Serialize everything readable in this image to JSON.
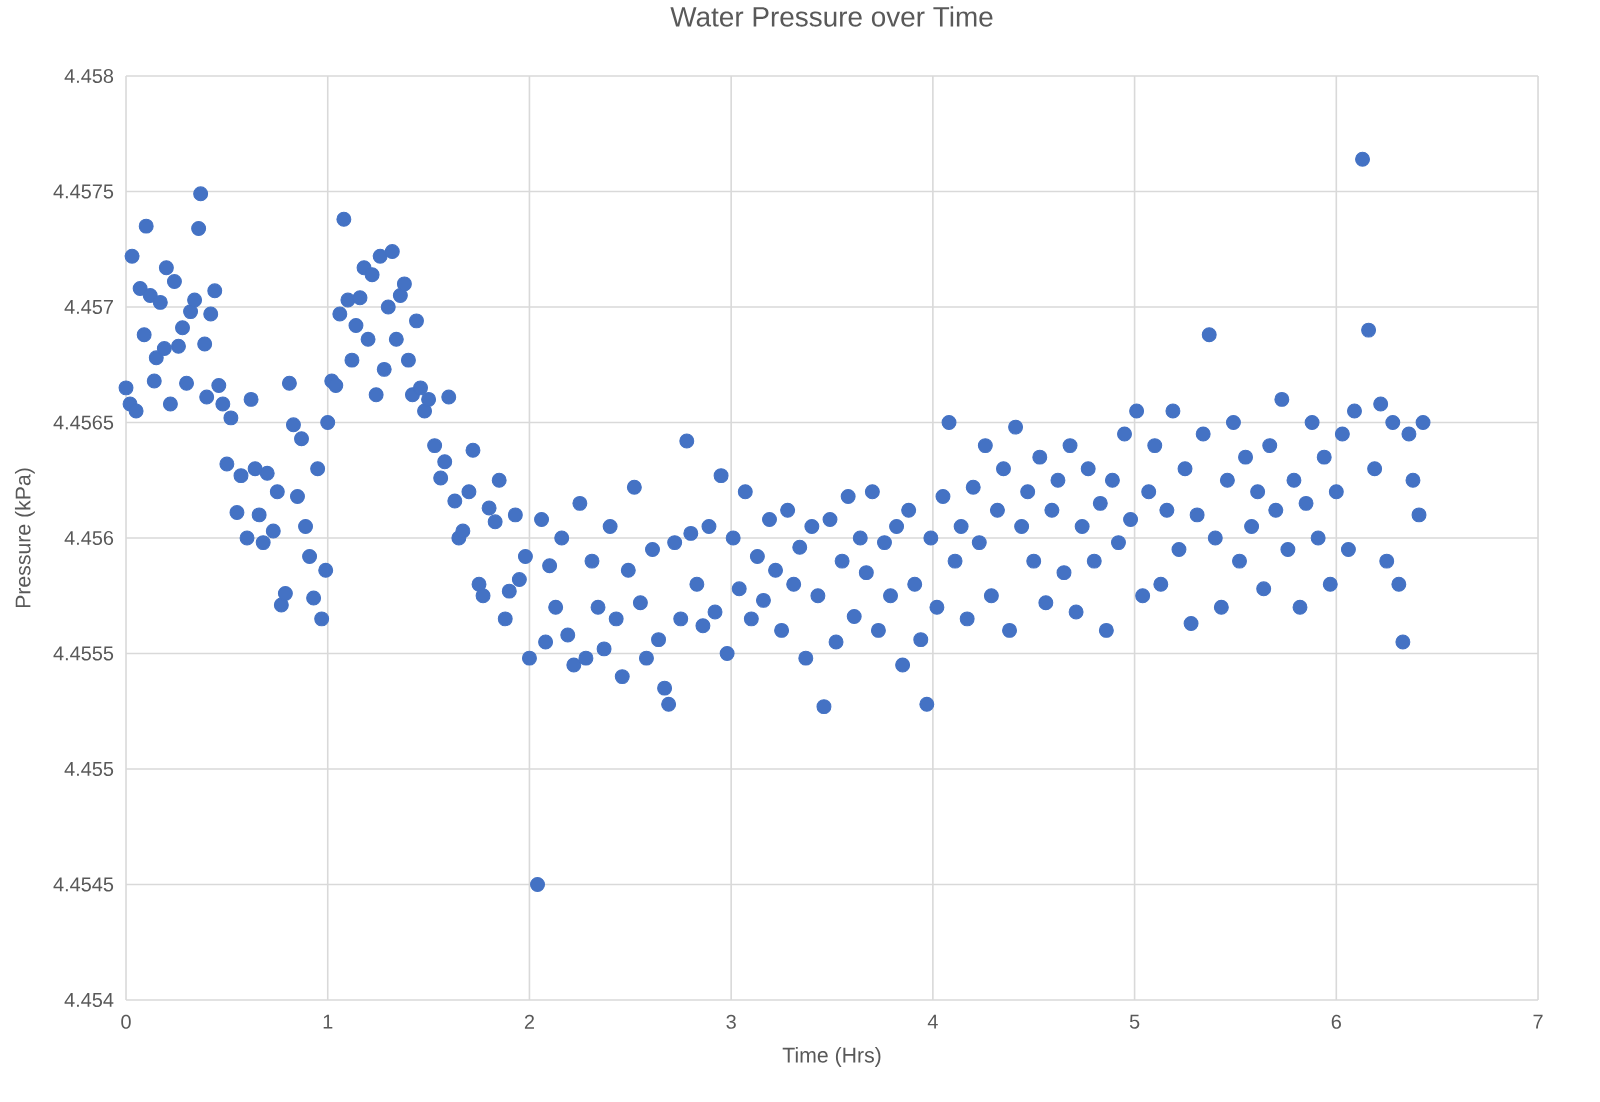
{
  "chart_data": {
    "type": "scatter",
    "title": "Water Pressure over Time",
    "xlabel": "Time (Hrs)",
    "ylabel": "Pressure (kPa)",
    "color": "#4472c4",
    "marker": "circle",
    "grid": true,
    "xlim": [
      0,
      7
    ],
    "xticks": [
      0,
      1,
      2,
      3,
      4,
      5,
      6,
      7
    ],
    "ylim": [
      4.454,
      4.458
    ],
    "yticks": [
      4.454,
      4.4545,
      4.455,
      4.4555,
      4.456,
      4.4565,
      4.457,
      4.4575,
      4.458
    ],
    "x": [
      0.0,
      0.02,
      0.03,
      0.05,
      0.07,
      0.09,
      0.1,
      0.12,
      0.14,
      0.15,
      0.17,
      0.19,
      0.2,
      0.22,
      0.24,
      0.26,
      0.28,
      0.3,
      0.32,
      0.34,
      0.36,
      0.37,
      0.39,
      0.4,
      0.42,
      0.44,
      0.46,
      0.48,
      0.5,
      0.52,
      0.55,
      0.57,
      0.6,
      0.62,
      0.64,
      0.66,
      0.68,
      0.7,
      0.73,
      0.75,
      0.77,
      0.79,
      0.81,
      0.83,
      0.85,
      0.87,
      0.89,
      0.91,
      0.93,
      0.95,
      0.97,
      0.99,
      1.0,
      1.02,
      1.04,
      1.06,
      1.08,
      1.1,
      1.12,
      1.14,
      1.16,
      1.18,
      1.2,
      1.22,
      1.24,
      1.26,
      1.28,
      1.3,
      1.32,
      1.34,
      1.36,
      1.38,
      1.4,
      1.42,
      1.44,
      1.46,
      1.48,
      1.5,
      1.53,
      1.56,
      1.58,
      1.6,
      1.63,
      1.65,
      1.67,
      1.7,
      1.72,
      1.75,
      1.77,
      1.8,
      1.83,
      1.85,
      1.88,
      1.9,
      1.93,
      1.95,
      1.98,
      2.0,
      2.04,
      2.06,
      2.08,
      2.1,
      2.13,
      2.16,
      2.19,
      2.22,
      2.25,
      2.28,
      2.31,
      2.34,
      2.37,
      2.4,
      2.43,
      2.46,
      2.49,
      2.52,
      2.55,
      2.58,
      2.61,
      2.64,
      2.67,
      2.69,
      2.72,
      2.75,
      2.78,
      2.8,
      2.83,
      2.86,
      2.89,
      2.92,
      2.95,
      2.98,
      3.01,
      3.04,
      3.07,
      3.1,
      3.13,
      3.16,
      3.19,
      3.22,
      3.25,
      3.28,
      3.31,
      3.34,
      3.37,
      3.4,
      3.43,
      3.46,
      3.49,
      3.52,
      3.55,
      3.58,
      3.61,
      3.64,
      3.67,
      3.7,
      3.73,
      3.76,
      3.79,
      3.82,
      3.85,
      3.88,
      3.91,
      3.94,
      3.97,
      3.99,
      4.02,
      4.05,
      4.08,
      4.11,
      4.14,
      4.17,
      4.2,
      4.23,
      4.26,
      4.29,
      4.32,
      4.35,
      4.38,
      4.41,
      4.44,
      4.47,
      4.5,
      4.53,
      4.56,
      4.59,
      4.62,
      4.65,
      4.68,
      4.71,
      4.74,
      4.77,
      4.8,
      4.83,
      4.86,
      4.89,
      4.92,
      4.95,
      4.98,
      5.01,
      5.04,
      5.07,
      5.1,
      5.13,
      5.16,
      5.19,
      5.22,
      5.25,
      5.28,
      5.31,
      5.34,
      5.37,
      5.4,
      5.43,
      5.46,
      5.49,
      5.52,
      5.55,
      5.58,
      5.61,
      5.64,
      5.67,
      5.7,
      5.73,
      5.76,
      5.79,
      5.82,
      5.85,
      5.88,
      5.91,
      5.94,
      5.97,
      6.0,
      6.03,
      6.06,
      6.09,
      6.13,
      6.16,
      6.19,
      6.22,
      6.25,
      6.28,
      6.31,
      6.33,
      6.36,
      6.38,
      6.41,
      6.43
    ],
    "values": [
      4.45665,
      4.45658,
      4.45722,
      4.45655,
      4.45708,
      4.45688,
      4.45735,
      4.45705,
      4.45668,
      4.45678,
      4.45702,
      4.45682,
      4.45717,
      4.45658,
      4.45711,
      4.45683,
      4.45691,
      4.45667,
      4.45698,
      4.45703,
      4.45734,
      4.45749,
      4.45684,
      4.45661,
      4.45697,
      4.45707,
      4.45666,
      4.45658,
      4.45632,
      4.45652,
      4.45611,
      4.45627,
      4.456,
      4.4566,
      4.4563,
      4.4561,
      4.45598,
      4.45628,
      4.45603,
      4.4562,
      4.45571,
      4.45576,
      4.45667,
      4.45649,
      4.45618,
      4.45643,
      4.45605,
      4.45592,
      4.45574,
      4.4563,
      4.45565,
      4.45586,
      4.4565,
      4.45668,
      4.45666,
      4.45697,
      4.45738,
      4.45703,
      4.45677,
      4.45692,
      4.45704,
      4.45717,
      4.45686,
      4.45714,
      4.45662,
      4.45722,
      4.45673,
      4.457,
      4.45724,
      4.45686,
      4.45705,
      4.4571,
      4.45677,
      4.45662,
      4.45694,
      4.45665,
      4.45655,
      4.4566,
      4.4564,
      4.45626,
      4.45633,
      4.45661,
      4.45616,
      4.456,
      4.45603,
      4.4562,
      4.45638,
      4.4558,
      4.45575,
      4.45613,
      4.45607,
      4.45625,
      4.45565,
      4.45577,
      4.4561,
      4.45582,
      4.45592,
      4.45548,
      4.4545,
      4.45608,
      4.45555,
      4.45588,
      4.4557,
      4.456,
      4.45558,
      4.45545,
      4.45615,
      4.45548,
      4.4559,
      4.4557,
      4.45552,
      4.45605,
      4.45565,
      4.4554,
      4.45586,
      4.45622,
      4.45572,
      4.45548,
      4.45595,
      4.45556,
      4.45535,
      4.45528,
      4.45598,
      4.45565,
      4.45642,
      4.45602,
      4.4558,
      4.45562,
      4.45605,
      4.45568,
      4.45627,
      4.4555,
      4.456,
      4.45578,
      4.4562,
      4.45565,
      4.45592,
      4.45573,
      4.45608,
      4.45586,
      4.4556,
      4.45612,
      4.4558,
      4.45596,
      4.45548,
      4.45605,
      4.45575,
      4.45527,
      4.45608,
      4.45555,
      4.4559,
      4.45618,
      4.45566,
      4.456,
      4.45585,
      4.4562,
      4.4556,
      4.45598,
      4.45575,
      4.45605,
      4.45545,
      4.45612,
      4.4558,
      4.45556,
      4.45528,
      4.456,
      4.4557,
      4.45618,
      4.4565,
      4.4559,
      4.45605,
      4.45565,
      4.45622,
      4.45598,
      4.4564,
      4.45575,
      4.45612,
      4.4563,
      4.4556,
      4.45648,
      4.45605,
      4.4562,
      4.4559,
      4.45635,
      4.45572,
      4.45612,
      4.45625,
      4.45585,
      4.4564,
      4.45568,
      4.45605,
      4.4563,
      4.4559,
      4.45615,
      4.4556,
      4.45625,
      4.45598,
      4.45645,
      4.45608,
      4.45655,
      4.45575,
      4.4562,
      4.4564,
      4.4558,
      4.45612,
      4.45655,
      4.45595,
      4.4563,
      4.45563,
      4.4561,
      4.45645,
      4.45688,
      4.456,
      4.4557,
      4.45625,
      4.4565,
      4.4559,
      4.45635,
      4.45605,
      4.4562,
      4.45578,
      4.4564,
      4.45612,
      4.4566,
      4.45595,
      4.45625,
      4.4557,
      4.45615,
      4.4565,
      4.456,
      4.45635,
      4.4558,
      4.4562,
      4.45645,
      4.45595,
      4.45655,
      4.45764,
      4.4569,
      4.4563,
      4.45658,
      4.4559,
      4.4565,
      4.4558,
      4.45555,
      4.45645,
      4.45625,
      4.4561,
      4.4565
    ]
  }
}
